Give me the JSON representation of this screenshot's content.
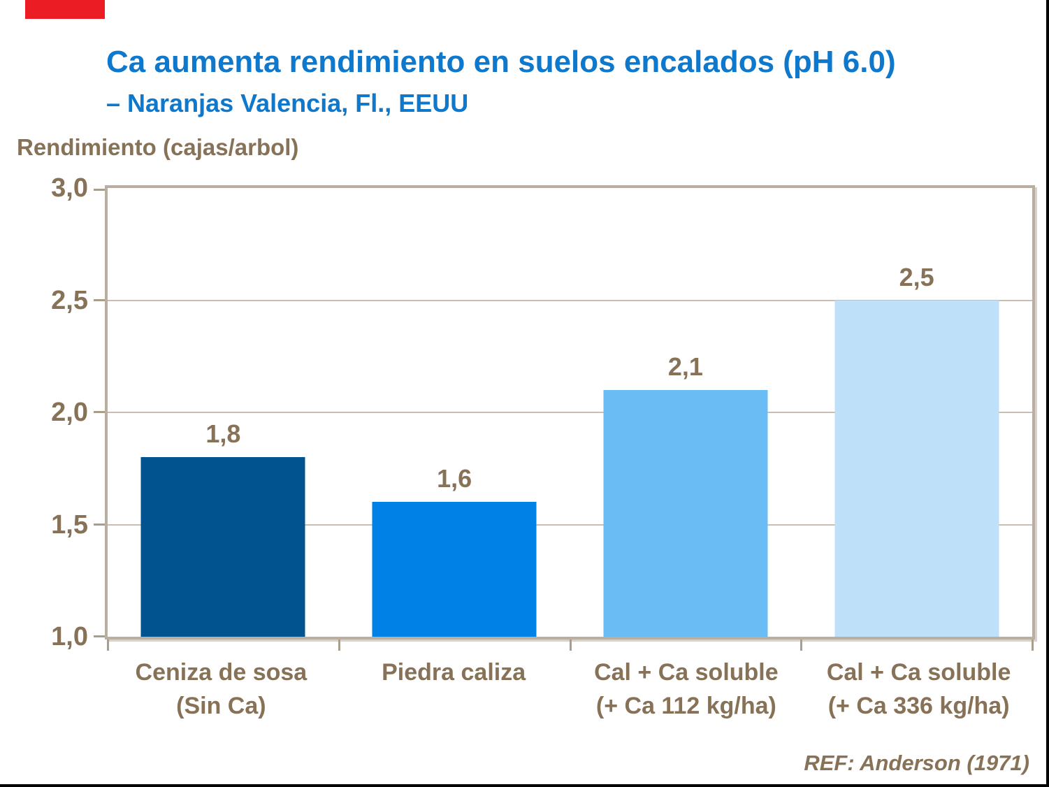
{
  "header": {
    "title": "Ca aumenta rendimiento en suelos encalados (pH 6.0)",
    "subtitle": "– Naranjas Valencia, Fl., EEUU"
  },
  "footer": {
    "reference": "REF: Anderson (1971)"
  },
  "colors": {
    "title_blue": "#0e78cc",
    "text_brown": "#877257",
    "frame_tan": "#b9aea0",
    "gridline": "#c8beb1",
    "tick": "#a99d8e",
    "accent_red": "#ec1c24",
    "edge_black": "#000000"
  },
  "chart_data": {
    "type": "bar",
    "title": "Ca aumenta rendimiento en suelos encalados (pH 6.0) – Naranjas Valencia, Fl., EEUU",
    "ylabel": "Rendimiento (cajas/arbol)",
    "xlabel": "",
    "categories": [
      "Ceniza de sosa (Sin Ca)",
      "Piedra caliza",
      "Cal + Ca soluble (+ Ca 112 kg/ha)",
      "Cal + Ca soluble (+ Ca 336 kg/ha)"
    ],
    "category_lines": [
      [
        "Ceniza de sosa",
        "(Sin Ca)"
      ],
      [
        "Piedra caliza",
        ""
      ],
      [
        "Cal + Ca soluble",
        "(+ Ca 112 kg/ha)"
      ],
      [
        "Cal + Ca soluble",
        "(+ Ca 336 kg/ha)"
      ]
    ],
    "values": [
      1.8,
      1.6,
      2.1,
      2.5
    ],
    "value_labels": [
      "1,8",
      "1,6",
      "2,1",
      "2,5"
    ],
    "bar_colors": [
      "#00538e",
      "#0081e6",
      "#6abcf5",
      "#bee0f8"
    ],
    "ylim": [
      1.0,
      3.0
    ],
    "yticks": [
      1.0,
      1.5,
      2.0,
      2.5,
      3.0
    ],
    "ytick_labels": [
      "1,0",
      "1,5",
      "2,0",
      "2,5",
      "3,0"
    ],
    "grid": true,
    "legend": false,
    "decimal_separator": ","
  }
}
